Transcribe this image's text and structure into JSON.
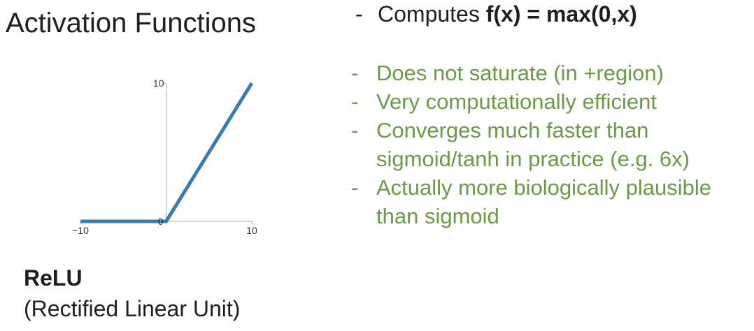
{
  "title": "Activation Functions",
  "top_bullet": {
    "dash": "-",
    "prefix": "Computes ",
    "formula": "f(x) = max(0,x)"
  },
  "bullets": [
    {
      "dash": "-",
      "text": "Does not saturate (in +region)"
    },
    {
      "dash": "-",
      "text": "Very computationally efficient"
    },
    {
      "dash": "-",
      "text": "Converges much faster than sigmoid/tanh in practice (e.g. 6x)"
    },
    {
      "dash": "-",
      "text": "Actually more biologically plausible than sigmoid"
    }
  ],
  "caption": {
    "name": "ReLU",
    "full_name": "(Rectified Linear Unit)"
  },
  "colors": {
    "bullet_text": "#6a9a45",
    "curve": "#3a7bb0",
    "axis": "#b0b0b0"
  },
  "chart_data": {
    "type": "line",
    "title": "",
    "xlabel": "",
    "ylabel": "",
    "xlim": [
      -10,
      10
    ],
    "ylim": [
      0,
      10
    ],
    "x_ticks": [
      "−10",
      "10"
    ],
    "y_ticks": [
      "10"
    ],
    "origin_label": "0",
    "grid": false,
    "series": [
      {
        "x": [
          -10,
          0,
          10
        ],
        "y": [
          0,
          0,
          10
        ]
      }
    ]
  }
}
